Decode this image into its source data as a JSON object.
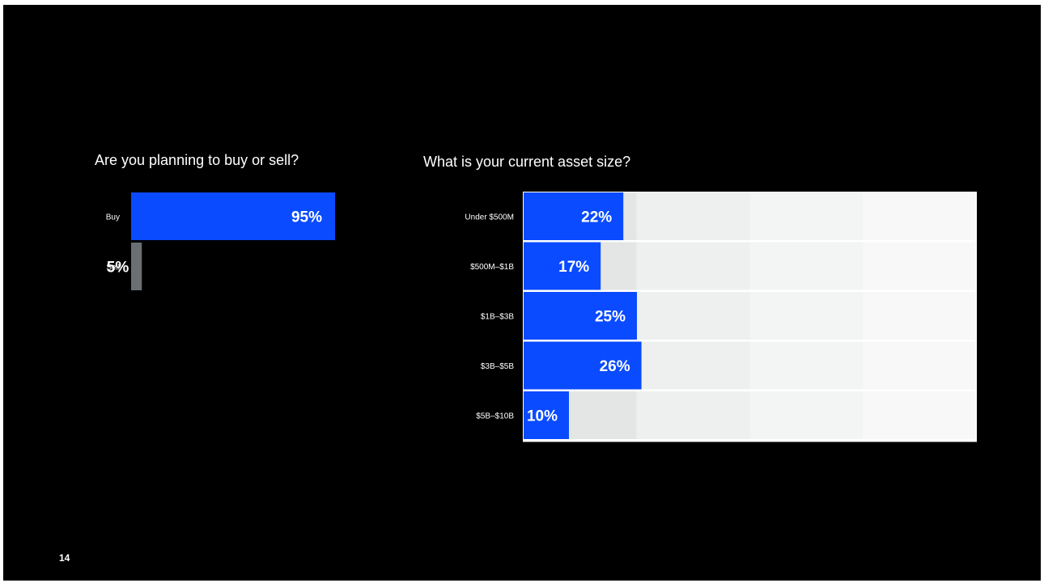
{
  "page": {
    "number": "14"
  },
  "chart_data": [
    {
      "type": "bar",
      "orientation": "horizontal",
      "title": "Are you planning to buy or sell?",
      "categories": [
        "Buy",
        "Sell"
      ],
      "values": [
        95,
        5
      ],
      "value_labels": [
        "95%",
        "5%"
      ],
      "unit": "%",
      "colors": [
        "#0a4bff",
        "#6b6f73"
      ],
      "xlim": [
        0,
        100
      ],
      "grid": false,
      "legend": "none"
    },
    {
      "type": "bar",
      "orientation": "horizontal",
      "title": "What is your current asset size?",
      "categories": [
        "Under $500M",
        "$500M–$1B",
        "$1B–$3B",
        "$3B–$5B",
        "$5B–$10B"
      ],
      "values": [
        22,
        17,
        25,
        26,
        10
      ],
      "value_labels": [
        "22%",
        "17%",
        "25%",
        "26%",
        "10%"
      ],
      "unit": "%",
      "colors": [
        "#0a4bff"
      ],
      "background_bands": [
        "#e4e5e5",
        "#eeefef",
        "#f3f4f4",
        "#f8f8f8"
      ],
      "xlim": [
        0,
        100
      ],
      "grid": false,
      "legend": "none"
    }
  ]
}
